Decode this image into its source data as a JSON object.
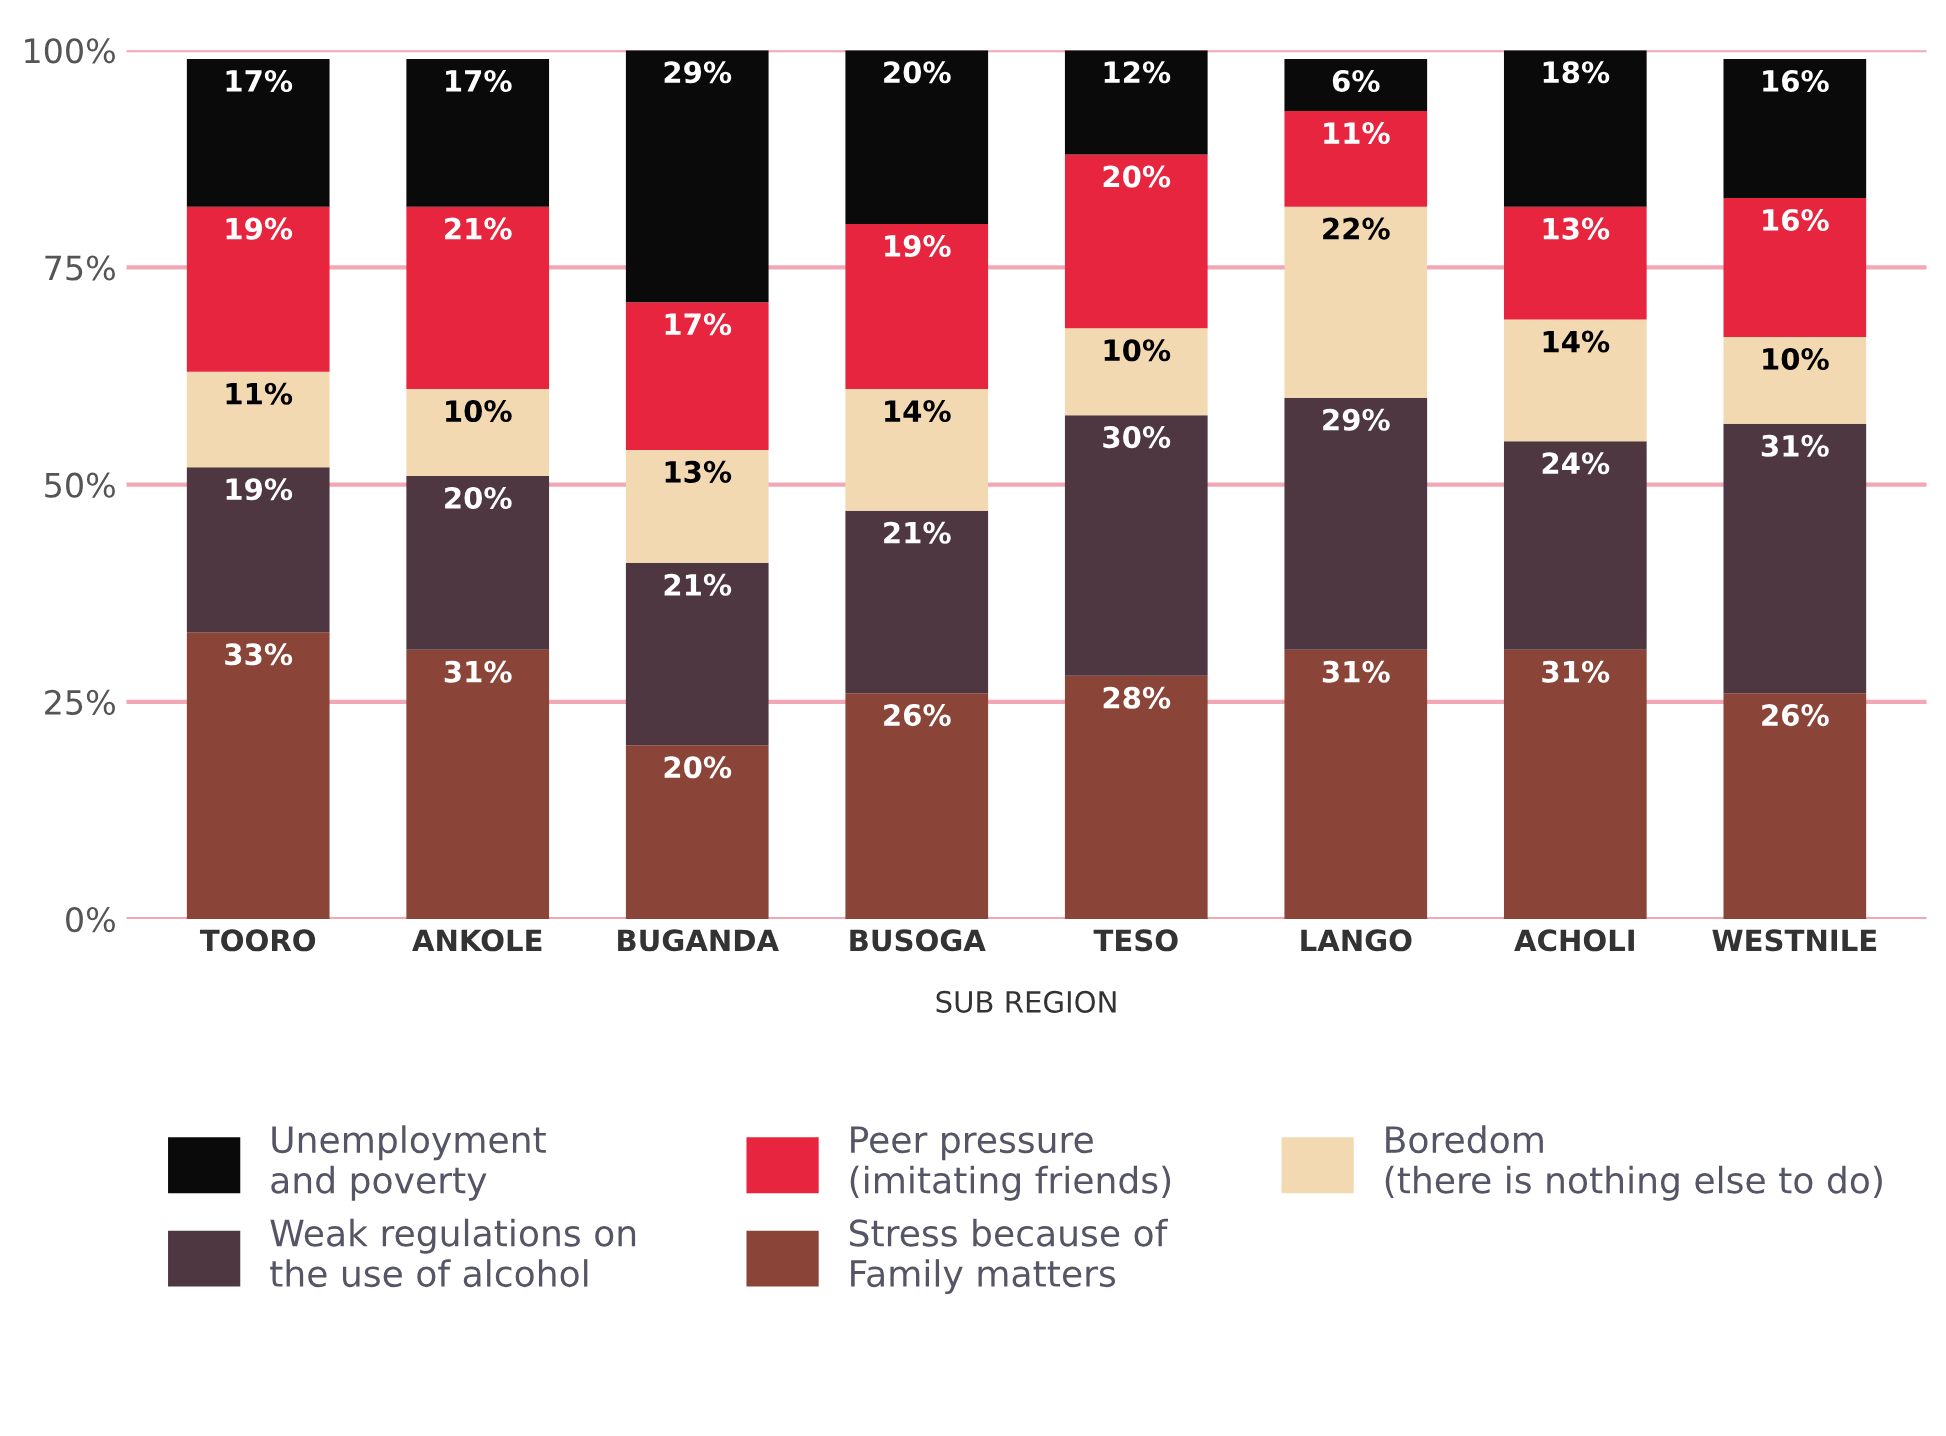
{
  "chart_data": {
    "type": "bar",
    "stacked": true,
    "xlabel": "SUB REGION",
    "categories": [
      "TOORO",
      "ANKOLE",
      "BUGANDA",
      "BUSOGA",
      "TESO",
      "LANGO",
      "ACHOLI",
      "WESTNILE"
    ],
    "series": [
      {
        "name": "Stress because of\nFamily matters",
        "color": "#8b4538",
        "values": [
          33,
          31,
          20,
          26,
          28,
          31,
          31,
          26
        ],
        "value_labels": [
          "33%",
          "31%",
          "20%",
          "26%",
          "28%",
          "31%",
          "31%",
          "26%"
        ]
      },
      {
        "name": "Weak regulations on\nthe use of alcohol",
        "color": "#4e3740",
        "values": [
          19,
          20,
          21,
          21,
          30,
          29,
          24,
          31
        ],
        "value_labels": [
          "19%",
          "20%",
          "21%",
          "21%",
          "30%",
          "29%",
          "24%",
          "31%"
        ]
      },
      {
        "name": "Boredom\n(there is nothing else to do)",
        "color": "#f3d9b1",
        "values": [
          11,
          10,
          13,
          14,
          10,
          22,
          14,
          10
        ],
        "value_labels": [
          "11%",
          "10%",
          "13%",
          "14%",
          "10%",
          "22%",
          "14%",
          "10%"
        ]
      },
      {
        "name": "Peer pressure\n(imitating friends)",
        "color": "#e8253f",
        "values": [
          19,
          21,
          17,
          19,
          20,
          11,
          13,
          16
        ],
        "value_labels": [
          "19%",
          "21%",
          "17%",
          "19%",
          "20%",
          "11%",
          "13%",
          "16%"
        ]
      },
      {
        "name": "Unemployment\nand poverty",
        "color": "#0a0a0a",
        "values": [
          17,
          17,
          29,
          20,
          12,
          6,
          18,
          16
        ],
        "value_labels": [
          "17%",
          "17%",
          "29%",
          "20%",
          "12%",
          "6%",
          "18%",
          "16%"
        ]
      }
    ],
    "ylim": [
      0,
      100
    ],
    "yticks": [
      {
        "value": 0,
        "label": "0%"
      },
      {
        "value": 25,
        "label": "25%"
      },
      {
        "value": 50,
        "label": "50%"
      },
      {
        "value": 75,
        "label": "75%"
      },
      {
        "value": 100,
        "label": "100%"
      }
    ],
    "grid": "y",
    "legend": "bottom"
  }
}
